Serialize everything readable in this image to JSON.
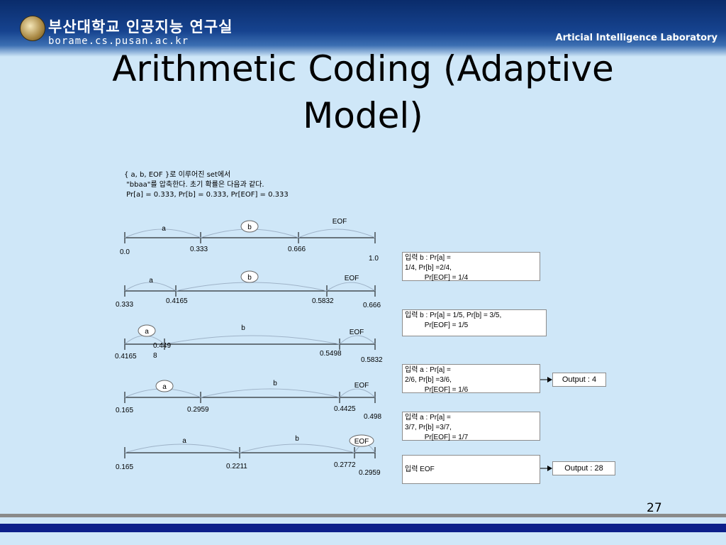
{
  "header": {
    "university": "부산대학교 인공지능 연구실",
    "url": "borame.cs.pusan.ac.kr",
    "lab": "Articial Intelligence Laboratory"
  },
  "title_line1": "Arithmetic Coding (Adaptive",
  "title_line2": "Model)",
  "intro": [
    "{ a, b, EOF }로 이루어진 set에서",
    " \"bbaa\"를 압축한다. 초기 확률은 다음과 같다.",
    " Pr[a] = 0.333, Pr[b] = 0.333, Pr[EOF] = 0.333"
  ],
  "rows": [
    {
      "segments": [
        "a",
        "b",
        "EOF"
      ],
      "selected": "b",
      "ticks": [
        "0.0",
        "0.333",
        "0.666",
        "1.0"
      ]
    },
    {
      "segments": [
        "a",
        "b",
        "EOF"
      ],
      "selected": "b",
      "ticks": [
        "0.333",
        "0.4165",
        "0.5832",
        "0.666"
      ]
    },
    {
      "segments": [
        "a",
        "b",
        "EOF"
      ],
      "selected": "a",
      "ticks": [
        "0.4165",
        "0.449\n8",
        "0.5498",
        "0.5832"
      ]
    },
    {
      "segments": [
        "a",
        "b",
        "EOF"
      ],
      "selected": "a",
      "ticks": [
        "0.165",
        "0.2959",
        "0.4425",
        "0.498"
      ]
    },
    {
      "segments": [
        "a",
        "b",
        "EOF"
      ],
      "selected": "EOF",
      "ticks": [
        "0.165",
        "0.2211",
        "0.2772",
        "0.2959"
      ]
    }
  ],
  "boxes": [
    [
      "입력 b : Pr[a] =",
      "1/4, Pr[b] =2/4,",
      "          Pr[EOF] = 1/4"
    ],
    [
      "입력 b : Pr[a] = 1/5, Pr[b] = 3/5,",
      "          Pr[EOF] = 1/5"
    ],
    [
      "입력 a : Pr[a] =",
      "2/6, Pr[b] =3/6,",
      "          Pr[EOF] = 1/6"
    ],
    [
      "입력 a : Pr[a] =",
      "3/7, Pr[b] =3/7,",
      "          Pr[EOF] = 1/7"
    ],
    [
      "입력 EOF"
    ]
  ],
  "outputs": [
    "Output : 4",
    "Output : 28"
  ],
  "page_number": "27"
}
